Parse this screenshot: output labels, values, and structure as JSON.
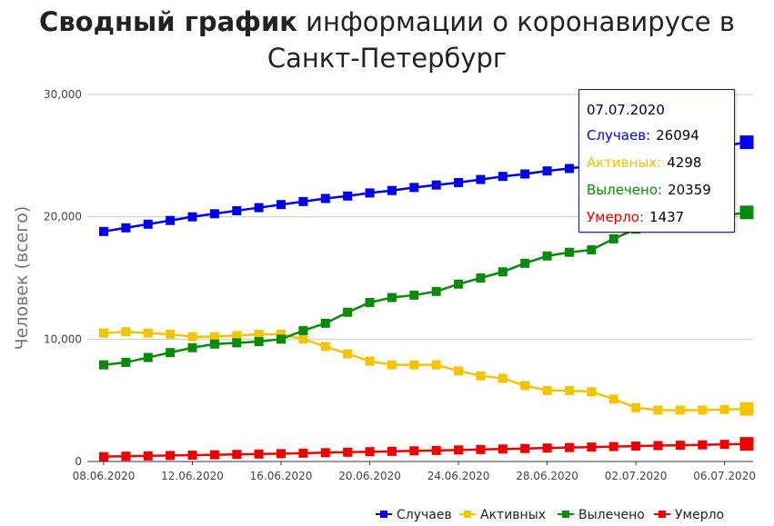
{
  "title": {
    "bold": "Сводный график",
    "rest": " информации о коронавирусе в Санкт-Петербург"
  },
  "colors": {
    "cases": "#0000ee",
    "active": "#f5c400",
    "recovered": "#0a8a0a",
    "deaths": "#ee0000",
    "grid": "#cccccc",
    "axis": "#333333"
  },
  "tooltip": {
    "date": "07.07.2020",
    "rows": [
      {
        "label": "Случаев:",
        "value": "26094",
        "color": "#0000ee"
      },
      {
        "label": "Активных:",
        "value": "4298",
        "color": "#f5c400"
      },
      {
        "label": "Вылечено:",
        "value": "20359",
        "color": "#0a8a0a"
      },
      {
        "label": "Умерло:",
        "value": "1437",
        "color": "#ee0000"
      }
    ]
  },
  "chart_data": {
    "type": "line",
    "title": "Сводный график информации о коронавирусе в Санкт-Петербург",
    "ylabel": "Человек (всего)",
    "xlabel": "",
    "ylim": [
      0,
      30000
    ],
    "y_ticks": [
      0,
      10000,
      20000,
      30000
    ],
    "y_tick_labels": [
      "0",
      "10,000",
      "20,000",
      "30,000"
    ],
    "x_tick_labels": [
      "08.06.2020",
      "12.06.2020",
      "16.06.2020",
      "20.06.2020",
      "24.06.2020",
      "28.06.2020",
      "02.07.2020",
      "06.07.2020"
    ],
    "x": [
      "08.06.2020",
      "09.06.2020",
      "10.06.2020",
      "11.06.2020",
      "12.06.2020",
      "13.06.2020",
      "14.06.2020",
      "15.06.2020",
      "16.06.2020",
      "17.06.2020",
      "18.06.2020",
      "19.06.2020",
      "20.06.2020",
      "21.06.2020",
      "22.06.2020",
      "23.06.2020",
      "24.06.2020",
      "25.06.2020",
      "26.06.2020",
      "27.06.2020",
      "28.06.2020",
      "29.06.2020",
      "30.06.2020",
      "01.07.2020",
      "02.07.2020",
      "03.07.2020",
      "04.07.2020",
      "05.07.2020",
      "06.07.2020",
      "07.07.2020"
    ],
    "grid": true,
    "legend_position": "bottom-right",
    "series": [
      {
        "name": "Случаев",
        "color": "#0000ee",
        "values": [
          18800,
          19100,
          19400,
          19700,
          20000,
          20250,
          20500,
          20750,
          21000,
          21250,
          21500,
          21700,
          21950,
          22150,
          22400,
          22600,
          22800,
          23050,
          23300,
          23500,
          23750,
          23950,
          24200,
          24450,
          24700,
          25000,
          25250,
          25500,
          25800,
          26094
        ]
      },
      {
        "name": "Активных",
        "color": "#f5c400",
        "values": [
          10500,
          10600,
          10500,
          10400,
          10200,
          10200,
          10300,
          10400,
          10400,
          10000,
          9400,
          8800,
          8200,
          7900,
          7900,
          7900,
          7400,
          7000,
          6800,
          6200,
          5800,
          5800,
          5700,
          5100,
          4400,
          4200,
          4200,
          4200,
          4250,
          4298
        ]
      },
      {
        "name": "Вылечено",
        "color": "#0a8a0a",
        "values": [
          7900,
          8100,
          8500,
          8900,
          9300,
          9600,
          9700,
          9800,
          10000,
          10700,
          11300,
          12200,
          13000,
          13400,
          13600,
          13900,
          14500,
          15000,
          15500,
          16200,
          16800,
          17100,
          17300,
          18200,
          19000,
          19400,
          19700,
          19900,
          20100,
          20359
        ]
      },
      {
        "name": "Умерло",
        "color": "#ee0000",
        "values": [
          400,
          430,
          460,
          490,
          520,
          550,
          580,
          610,
          640,
          680,
          720,
          760,
          800,
          830,
          870,
          900,
          940,
          980,
          1020,
          1060,
          1100,
          1140,
          1180,
          1220,
          1260,
          1300,
          1330,
          1360,
          1400,
          1437
        ]
      }
    ]
  }
}
